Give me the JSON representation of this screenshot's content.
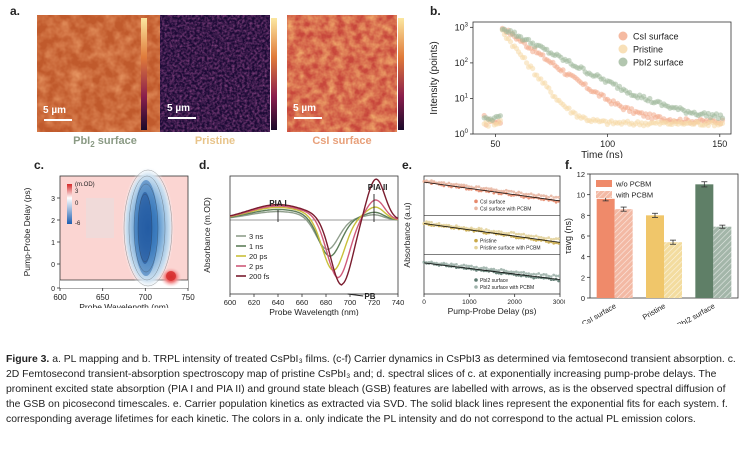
{
  "panel_a": {
    "label": "a.",
    "scale_bar": "5 µm",
    "maps": [
      {
        "name": "PbI2 surface",
        "label_main": "PbI",
        "label_sub": "2",
        "label_tail": " surface",
        "label_color": "#8a9a84"
      },
      {
        "name": "Pristine",
        "label_main": "Pristine",
        "label_sub": "",
        "label_tail": "",
        "label_color": "#e8c48a"
      },
      {
        "name": "CsI surface",
        "label_main": "CsI surface",
        "label_sub": "",
        "label_tail": "",
        "label_color": "#e8a07a"
      }
    ]
  },
  "panel_b": {
    "label": "b."
  },
  "panel_c": {
    "label": "c."
  },
  "panel_d": {
    "label": "d."
  },
  "panel_e": {
    "label": "e."
  },
  "panel_f": {
    "label": "f."
  },
  "chart_data": [
    {
      "id": "b",
      "type": "scatter",
      "title": "",
      "xlabel": "Time (ns)",
      "ylabel": "Intensity (points)",
      "xlim": [
        40,
        155
      ],
      "ylim_log": [
        1,
        1000
      ],
      "yscale": "log",
      "xticks": [
        50,
        100,
        150
      ],
      "yticks": [
        "10^0",
        "10^1",
        "10^2",
        "10^3"
      ],
      "legend": [
        "CsI surface",
        "Pristine",
        "PbI2 surface"
      ],
      "legend_colors": [
        "#f2a98a",
        "#f6d8a6",
        "#9fb89b"
      ],
      "series": [
        {
          "name": "CsI surface",
          "peak": 1000,
          "t0": 53,
          "tau": 9.5,
          "floor": 2.2
        },
        {
          "name": "Pristine",
          "peak": 800,
          "t0": 53,
          "tau": 5.3,
          "floor": 2.0
        },
        {
          "name": "PbI2 surface",
          "peak": 1000,
          "t0": 53,
          "tau": 13,
          "floor": 2.6
        }
      ]
    },
    {
      "id": "c",
      "type": "heatmap",
      "xlabel": "Probe Wavelength (nm)",
      "ylabel": "Pump-Probe Delay (ps)",
      "xticks": [
        600,
        650,
        700,
        750
      ],
      "yticks": [
        "0",
        "10^0",
        "10^1",
        "10^2",
        "10^3"
      ],
      "colorbar_label": "(m.OD)",
      "colorbar_ticks": [
        3,
        0,
        -6
      ]
    },
    {
      "id": "d",
      "type": "line",
      "xlabel": "Probe Wavelength (nm)",
      "ylabel": "Absorbance (m.OD)",
      "xlim": [
        600,
        740
      ],
      "xticks": [
        600,
        620,
        640,
        660,
        680,
        700,
        720,
        740
      ],
      "annotations": [
        "PIA I",
        "PIA II",
        "PB"
      ],
      "legend": [
        "3 ns",
        "1 ns",
        "20 ps",
        "2 ps",
        "200 fs"
      ],
      "legend_colors": [
        "#8f9e8c",
        "#5e7e5a",
        "#c9c03a",
        "#cf5a7a",
        "#7a1c2e"
      ],
      "series": [
        {
          "name": "3 ns",
          "pia1": 0.12,
          "pb_center": 681,
          "pb_depth": 0.45,
          "pia2": 0.05
        },
        {
          "name": "1 ns",
          "pia1": 0.15,
          "pb_center": 683,
          "pb_depth": 0.55,
          "pia2": 0.08
        },
        {
          "name": "20 ps",
          "pia1": 0.18,
          "pb_center": 686,
          "pb_depth": 0.75,
          "pia2": 0.15
        },
        {
          "name": "2 ps",
          "pia1": 0.2,
          "pb_center": 690,
          "pb_depth": 0.85,
          "pia2": 0.25
        },
        {
          "name": "200 fs",
          "pia1": 0.22,
          "pb_center": 693,
          "pb_depth": 0.95,
          "pia2": 0.55
        }
      ]
    },
    {
      "id": "e",
      "type": "scatter",
      "xlabel": "Pump-Probe Delay (ps)",
      "ylabel": "Absorbance (a.u)",
      "xticks": [
        0,
        1000,
        2000,
        3000
      ],
      "subplots": [
        {
          "legend": [
            "CsI surface",
            "CsI surface with PCBM"
          ],
          "colors": [
            "#e6896c",
            "#e8b7a3"
          ],
          "start": 1.0,
          "end": 0.55
        },
        {
          "legend": [
            "Pristine",
            "Pristine surface with PCBM"
          ],
          "colors": [
            "#c9a848",
            "#e3d39c"
          ],
          "start": 0.95,
          "end": 0.5
        },
        {
          "legend": [
            "PbI2 surface",
            "PbI2 surface with PCBM"
          ],
          "colors": [
            "#5d7a70",
            "#9fb3ab"
          ],
          "start": 0.95,
          "end": 0.55
        }
      ]
    },
    {
      "id": "f",
      "type": "bar",
      "ylabel": "τavg (ns)",
      "ylim": [
        0,
        12
      ],
      "yticks": [
        0,
        2,
        4,
        6,
        8,
        10,
        12
      ],
      "categories": [
        "CsI surface",
        "Pristine",
        "PbI2 surface"
      ],
      "legend": [
        "w/o PCBM",
        "with PCBM"
      ],
      "series": [
        {
          "name": "w/o PCBM",
          "values": [
            9.6,
            8.0,
            11.0
          ],
          "errors": [
            0.2,
            0.2,
            0.25
          ],
          "colors": [
            "#ef8a6a",
            "#f0c66a",
            "#5f7f67"
          ]
        },
        {
          "name": "with PCBM",
          "values": [
            8.6,
            5.4,
            6.9
          ],
          "errors": [
            0.2,
            0.2,
            0.15
          ],
          "colors": [
            "#f3b9a4",
            "#f3dc9f",
            "#a3b6a9"
          ]
        }
      ]
    }
  ],
  "caption": {
    "title": "Figure 3.",
    "text": " a. PL mapping and b. TRPL intensity of treated CsPbI₃ films. (c-f) Carrier dynamics in CsPbI3 as determined via femtosecond transient absorption. c. 2D Femtosecond transient-absorption spectroscopy map of pristine CsPbI₃ and; d. spectral slices of c. at exponentially increasing pump-probe delays. The prominent excited state absorption (PIA I and PIA II) and ground state bleach (GSB) features are labelled with arrows, as is the observed spectral diffusion of the GSB on picosecond timescales. e. Carrier population kinetics as extracted via SVD. The solid black lines represent the exponential fits for each system. f. corresponding average lifetimes for each kinetic. The colors in a. only indicate the PL intensity and do not correspond to the actual PL emission colors."
  }
}
